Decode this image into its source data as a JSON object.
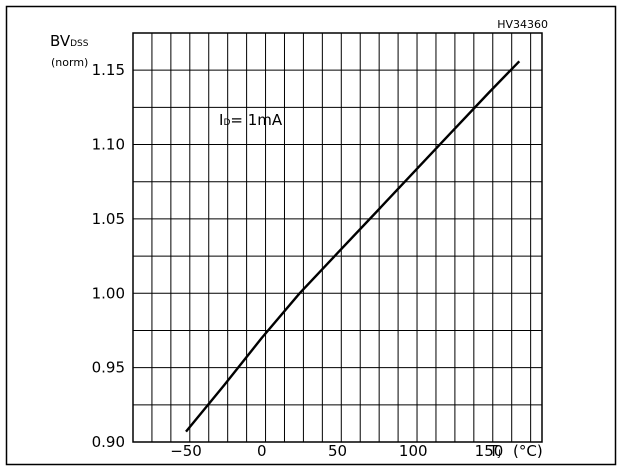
{
  "chart_data": {
    "type": "line",
    "reference": "HV34360",
    "ylabel": "BV",
    "ylabel_sub": "DSS",
    "ylabel_unit": "(norm)",
    "xlabel": "T",
    "xlabel_sub": "J",
    "xlabel_unit": "(°C)",
    "annotation": {
      "main": "I",
      "sub": "D",
      "rest": "= 1mA"
    },
    "xlim": [
      -85,
      185
    ],
    "ylim": [
      0.9,
      1.175
    ],
    "grid": true,
    "grid_x_step": 12.5,
    "grid_y_step": 0.025,
    "x_ticks": [
      -50,
      0,
      50,
      100,
      150
    ],
    "x_tick_labels": [
      "−50",
      "0",
      "50",
      "100",
      "150"
    ],
    "y_ticks": [
      0.9,
      0.95,
      1.0,
      1.05,
      1.1,
      1.15
    ],
    "y_tick_labels": [
      "0.90",
      "0.95",
      "1.00",
      "1.05",
      "1.10",
      "1.15"
    ],
    "series": [
      {
        "x": [
          -50,
          -25,
          0,
          25,
          50,
          75,
          100,
          125,
          150,
          170
        ],
        "y": [
          0.907,
          0.938,
          0.97,
          1.0,
          1.027,
          1.054,
          1.081,
          1.108,
          1.135,
          1.156
        ]
      }
    ]
  }
}
